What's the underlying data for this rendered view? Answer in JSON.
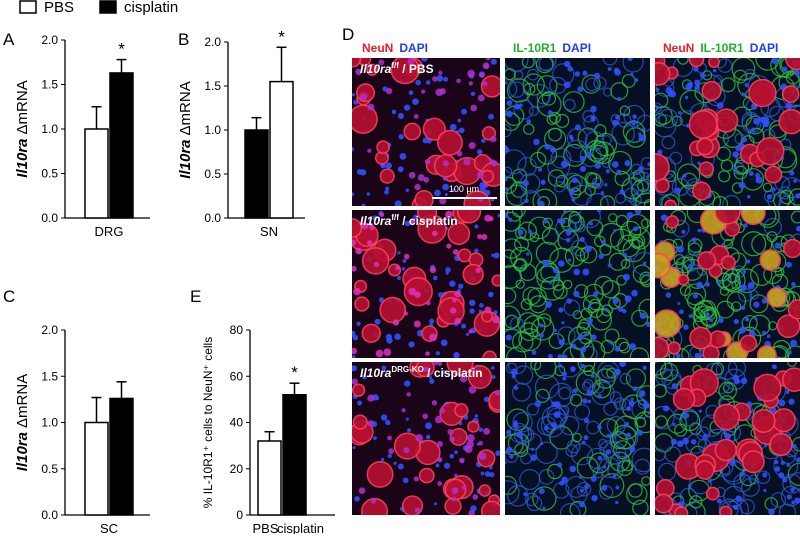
{
  "legend": [
    {
      "name": "PBS",
      "color": "#ffffff"
    },
    {
      "name": "cisplatin",
      "color": "#000000"
    }
  ],
  "chart_data": [
    {
      "type": "bar",
      "panel": "A",
      "ylabel": [
        "Il10ra",
        "ΔmRNA"
      ],
      "xlabel": "DRG",
      "ylim": [
        0,
        2
      ],
      "yticks": [
        {
          "value": 0,
          "label": "0.0"
        },
        0.5,
        {
          "value": 1,
          "label": "1.0"
        },
        1.5,
        {
          "value": 2,
          "label": "2.0"
        }
      ],
      "values": [
        1.0,
        1.63
      ],
      "errors": [
        0.25,
        0.15
      ],
      "colors": [
        "#ffffff",
        "#000000"
      ],
      "annotation": "*"
    },
    {
      "type": "bar",
      "panel": "B",
      "ylabel": [
        "Il10ra",
        "ΔmRNA"
      ],
      "xlabel": "SN",
      "ylim": [
        0,
        2
      ],
      "yticks": [
        {
          "value": 0,
          "label": "0.0"
        },
        0.5,
        {
          "value": 1,
          "label": "1.0"
        },
        1.5,
        {
          "value": 2,
          "label": "2.0"
        }
      ],
      "values": [
        1.0,
        1.55
      ],
      "errors": [
        0.14,
        0.39
      ],
      "colors": [
        "#000000",
        "#ffffff"
      ],
      "annotation": "*"
    },
    {
      "type": "bar",
      "panel": "C",
      "ylabel": [
        "Il10ra",
        "ΔmRNA"
      ],
      "xlabel": "SC",
      "ylim": [
        0,
        2
      ],
      "yticks": [
        {
          "value": 0,
          "label": "0.0"
        },
        0.5,
        {
          "value": 1,
          "label": "1.0"
        },
        1.5,
        {
          "value": 2,
          "label": "2.0"
        }
      ],
      "values": [
        1.0,
        1.26
      ],
      "errors": [
        0.27,
        0.18
      ],
      "colors": [
        "#ffffff",
        "#000000"
      ]
    },
    {
      "type": "bar",
      "panel": "E",
      "ylabel": [
        "% IL-10R1⁺ cells to NeuN⁺ cells"
      ],
      "categories": [
        "PBS",
        "cisplatin"
      ],
      "ylim": [
        0,
        80
      ],
      "yticks": [
        0,
        20,
        40,
        60,
        80
      ],
      "values": [
        32,
        52
      ],
      "errors": [
        4,
        5
      ],
      "colors": [
        "#ffffff",
        "#000000"
      ],
      "annotation": "*"
    }
  ],
  "images": {
    "panel": "D",
    "columns": [
      [
        {
          "text": "NeuN",
          "color": "#e8202a"
        },
        {
          "text": "DAPI",
          "color": "#2040e0"
        }
      ],
      [
        {
          "text": "IL-10R1",
          "color": "#20b030"
        },
        {
          "text": "DAPI",
          "color": "#2040e0"
        }
      ],
      [
        {
          "text": "NeuN",
          "color": "#e8202a"
        },
        {
          "text": "IL-10R1",
          "color": "#20b030"
        },
        {
          "text": "DAPI",
          "color": "#2040e0"
        }
      ]
    ],
    "rows": [
      {
        "gene": "Il10ra",
        "sup": "f/f",
        "condition": " / PBS"
      },
      {
        "gene": "Il10ra",
        "sup": "f/f",
        "condition": " / cisplatin"
      },
      {
        "gene": "Il10ra",
        "sup": "DRG-KO",
        "condition": " / cisplatin"
      }
    ],
    "scale_bar": "100 µm"
  }
}
